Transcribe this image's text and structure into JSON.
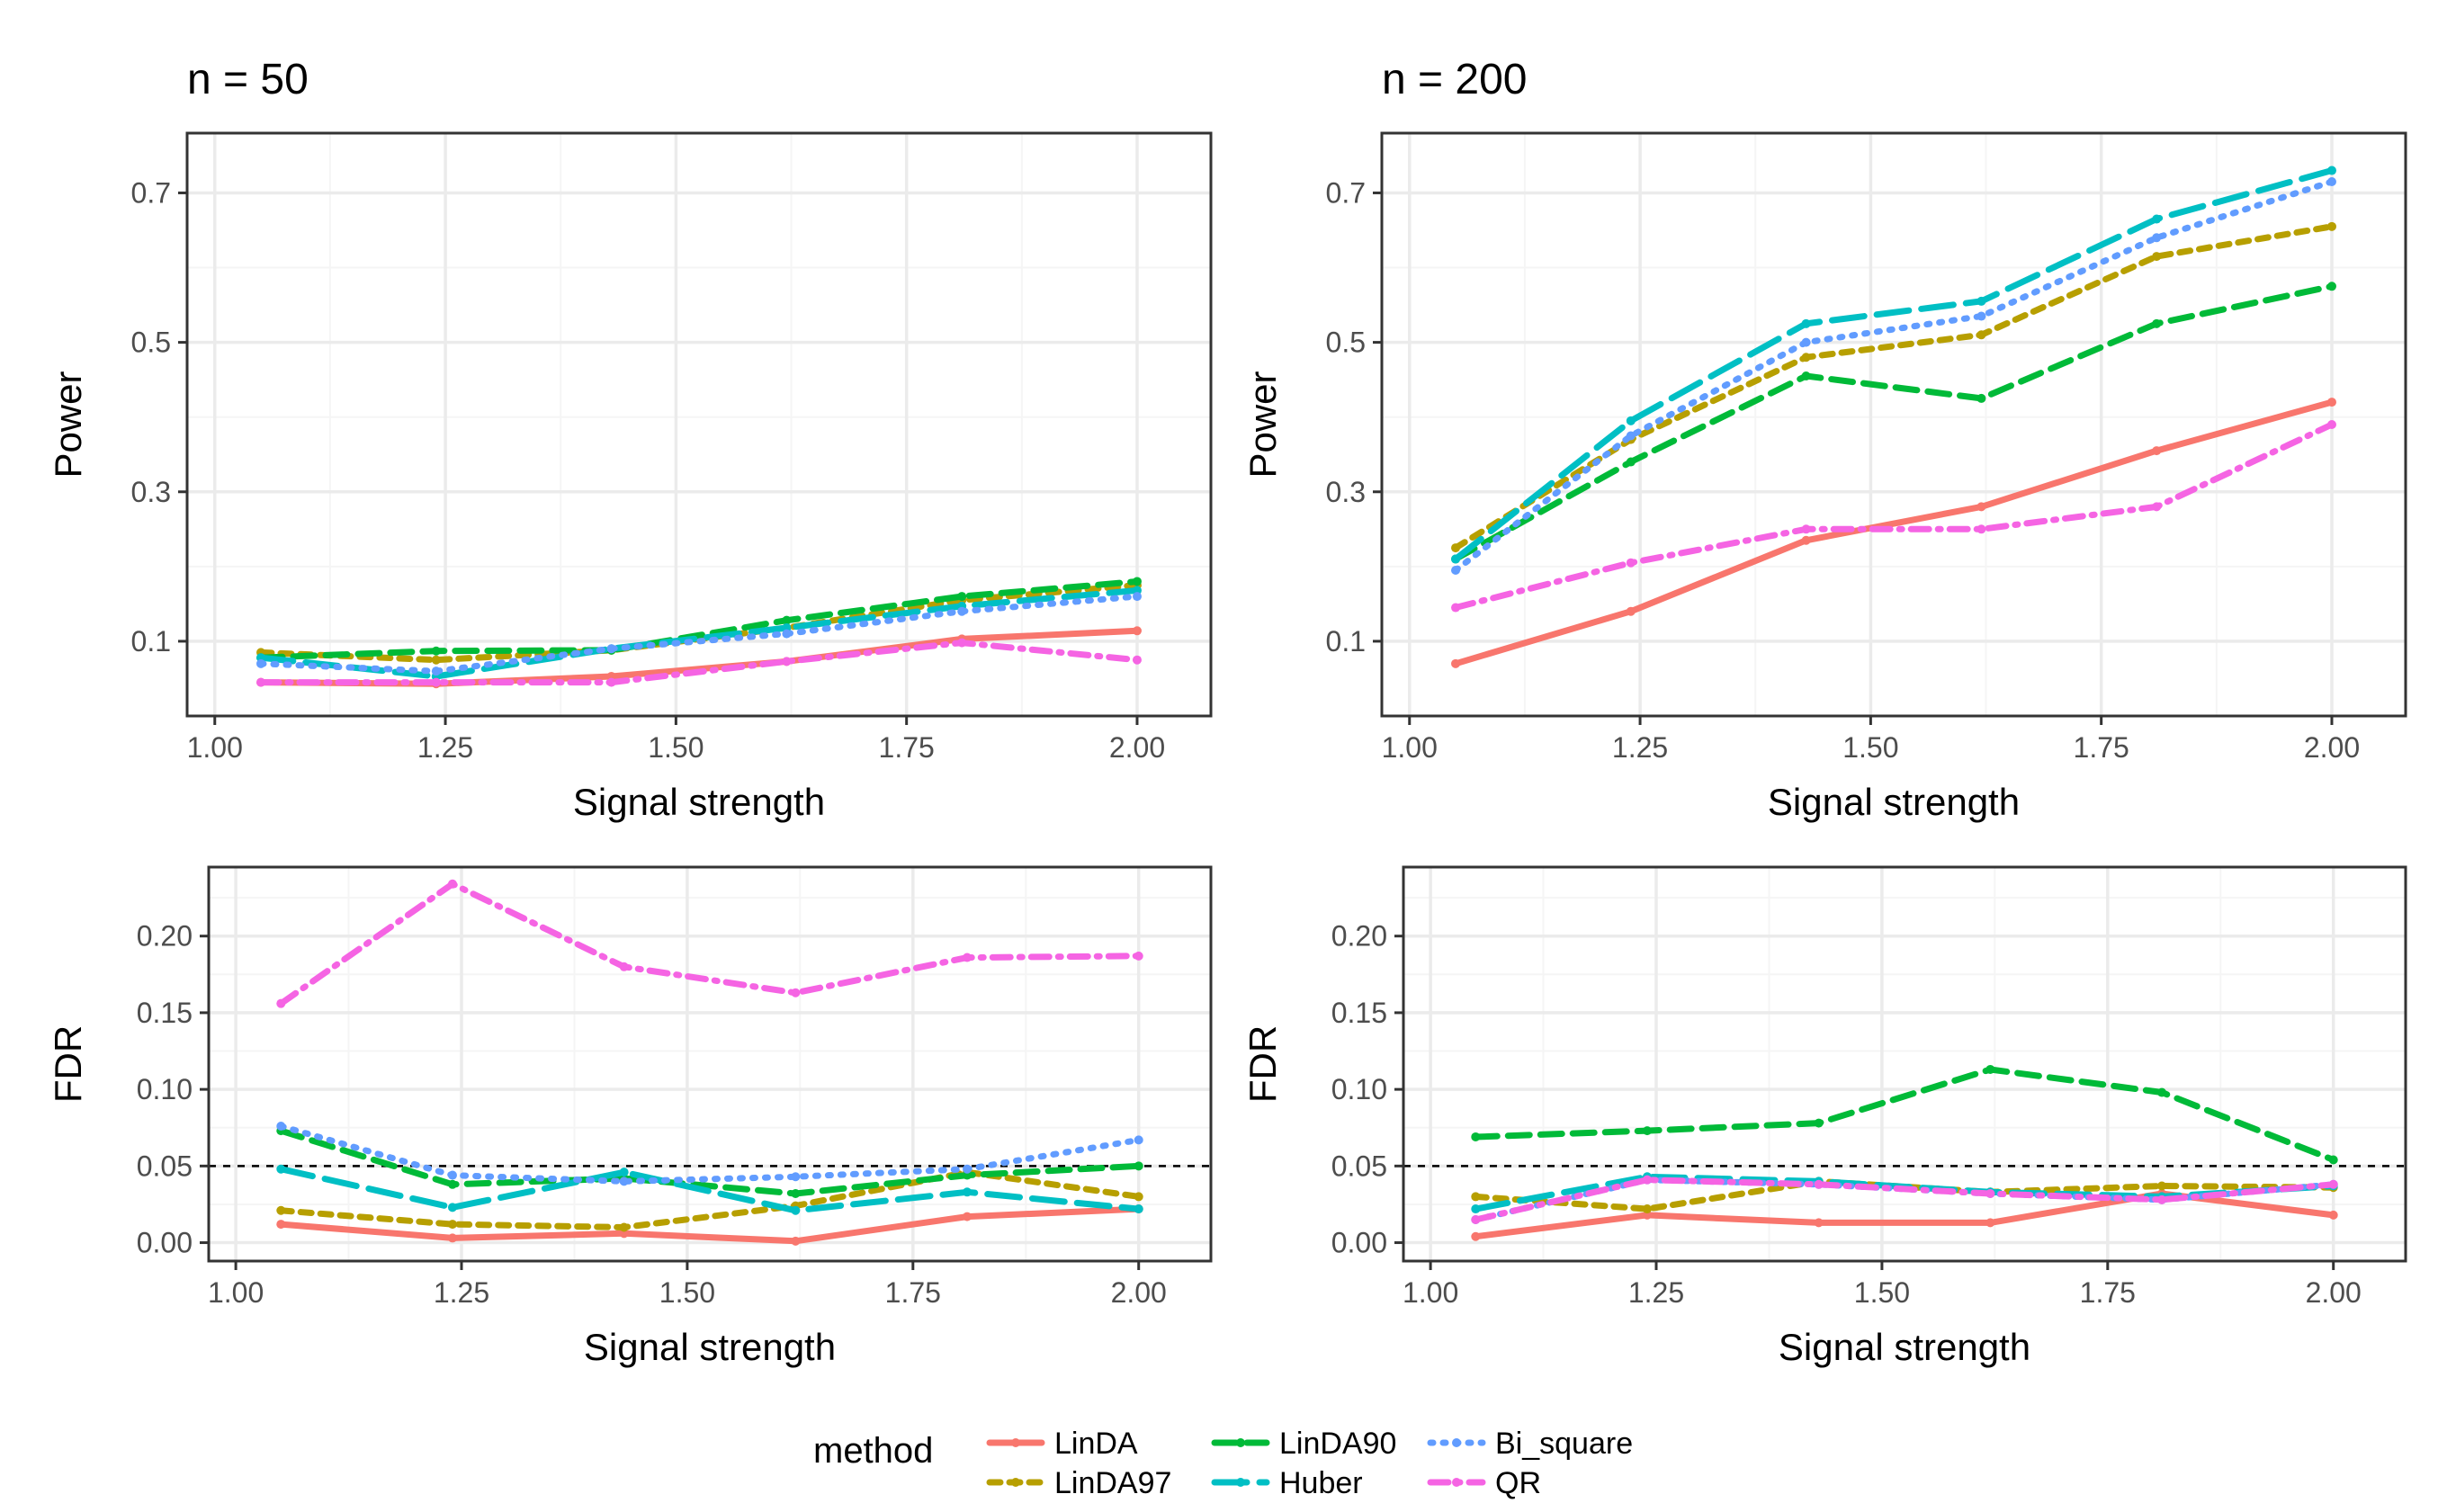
{
  "figure": {
    "legend": {
      "title": "method",
      "position": "bottom",
      "entries": [
        "LinDA",
        "LinDA97",
        "LinDA90",
        "Huber",
        "Bi_square",
        "QR"
      ]
    }
  },
  "chart_data": [
    {
      "type": "line",
      "panel_title": "n = 50",
      "xlabel": "Signal strength",
      "ylabel": "Power",
      "xlim": [
        0.97,
        2.08
      ],
      "ylim": [
        0.0,
        0.78
      ],
      "x_ticks": [
        1.0,
        1.25,
        1.5,
        1.75,
        2.0
      ],
      "x_tick_labels": [
        "1.00",
        "1.25",
        "1.50",
        "1.75",
        "2.00"
      ],
      "y_ticks": [
        0.1,
        0.3,
        0.5,
        0.7
      ],
      "y_tick_labels": [
        "0.1",
        "0.3",
        "0.5",
        "0.7"
      ],
      "hline": null,
      "x": [
        1.05,
        1.24,
        1.43,
        1.62,
        1.81,
        2.0
      ],
      "series": [
        {
          "name": "LinDA",
          "values": [
            0.045,
            0.043,
            0.053,
            0.073,
            0.103,
            0.114
          ]
        },
        {
          "name": "LinDA97",
          "values": [
            0.085,
            0.075,
            0.088,
            0.118,
            0.155,
            0.175
          ]
        },
        {
          "name": "LinDA90",
          "values": [
            0.078,
            0.087,
            0.088,
            0.128,
            0.16,
            0.18
          ]
        },
        {
          "name": "Huber",
          "values": [
            0.078,
            0.053,
            0.09,
            0.118,
            0.147,
            0.168
          ]
        },
        {
          "name": "Bi_square",
          "values": [
            0.07,
            0.06,
            0.09,
            0.11,
            0.14,
            0.16
          ]
        },
        {
          "name": "QR",
          "values": [
            0.045,
            0.045,
            0.045,
            0.073,
            0.098,
            0.075
          ]
        }
      ]
    },
    {
      "type": "line",
      "panel_title": "n = 200",
      "xlabel": "Signal strength",
      "ylabel": "Power",
      "xlim": [
        0.97,
        2.08
      ],
      "ylim": [
        0.0,
        0.78
      ],
      "x_ticks": [
        1.0,
        1.25,
        1.5,
        1.75,
        2.0
      ],
      "x_tick_labels": [
        "1.00",
        "1.25",
        "1.50",
        "1.75",
        "2.00"
      ],
      "y_ticks": [
        0.1,
        0.3,
        0.5,
        0.7
      ],
      "y_tick_labels": [
        "0.1",
        "0.3",
        "0.5",
        "0.7"
      ],
      "hline": null,
      "x": [
        1.05,
        1.24,
        1.43,
        1.62,
        1.81,
        2.0
      ],
      "series": [
        {
          "name": "LinDA",
          "values": [
            0.07,
            0.14,
            0.235,
            0.28,
            0.355,
            0.42
          ]
        },
        {
          "name": "LinDA97",
          "values": [
            0.225,
            0.37,
            0.48,
            0.51,
            0.615,
            0.655
          ]
        },
        {
          "name": "LinDA90",
          "values": [
            0.21,
            0.34,
            0.455,
            0.425,
            0.525,
            0.575
          ]
        },
        {
          "name": "Huber",
          "values": [
            0.21,
            0.395,
            0.525,
            0.555,
            0.665,
            0.73
          ]
        },
        {
          "name": "Bi_square",
          "values": [
            0.195,
            0.375,
            0.5,
            0.535,
            0.64,
            0.715
          ]
        },
        {
          "name": "QR",
          "values": [
            0.145,
            0.205,
            0.25,
            0.25,
            0.28,
            0.39
          ]
        }
      ]
    },
    {
      "type": "line",
      "panel_title": "",
      "xlabel": "Signal strength",
      "ylabel": "FDR",
      "xlim": [
        0.97,
        2.08
      ],
      "ylim": [
        -0.012,
        0.245
      ],
      "x_ticks": [
        1.0,
        1.25,
        1.5,
        1.75,
        2.0
      ],
      "x_tick_labels": [
        "1.00",
        "1.25",
        "1.50",
        "1.75",
        "2.00"
      ],
      "y_ticks": [
        0.0,
        0.05,
        0.1,
        0.15,
        0.2
      ],
      "y_tick_labels": [
        "0.00",
        "0.05",
        "0.10",
        "0.15",
        "0.20"
      ],
      "hline": 0.05,
      "x": [
        1.05,
        1.24,
        1.43,
        1.62,
        1.81,
        2.0
      ],
      "series": [
        {
          "name": "LinDA",
          "values": [
            0.012,
            0.003,
            0.006,
            0.001,
            0.017,
            0.022
          ]
        },
        {
          "name": "LinDA97",
          "values": [
            0.021,
            0.012,
            0.01,
            0.024,
            0.046,
            0.03
          ]
        },
        {
          "name": "LinDA90",
          "values": [
            0.073,
            0.038,
            0.042,
            0.032,
            0.044,
            0.05
          ]
        },
        {
          "name": "Huber",
          "values": [
            0.048,
            0.023,
            0.046,
            0.021,
            0.033,
            0.022
          ]
        },
        {
          "name": "Bi_square",
          "values": [
            0.076,
            0.044,
            0.04,
            0.043,
            0.048,
            0.067
          ]
        },
        {
          "name": "QR",
          "values": [
            0.156,
            0.234,
            0.18,
            0.163,
            0.186,
            0.187
          ]
        }
      ]
    },
    {
      "type": "line",
      "panel_title": "",
      "xlabel": "Signal strength",
      "ylabel": "FDR",
      "xlim": [
        0.97,
        2.08
      ],
      "ylim": [
        -0.012,
        0.245
      ],
      "x_ticks": [
        1.0,
        1.25,
        1.5,
        1.75,
        2.0
      ],
      "x_tick_labels": [
        "1.00",
        "1.25",
        "1.50",
        "1.75",
        "2.00"
      ],
      "y_ticks": [
        0.0,
        0.05,
        0.1,
        0.15,
        0.2
      ],
      "y_tick_labels": [
        "0.00",
        "0.05",
        "0.10",
        "0.15",
        "0.20"
      ],
      "hline": 0.05,
      "x": [
        1.05,
        1.24,
        1.43,
        1.62,
        1.81,
        2.0
      ],
      "series": [
        {
          "name": "LinDA",
          "values": [
            0.004,
            0.018,
            0.013,
            0.013,
            0.032,
            0.018
          ]
        },
        {
          "name": "LinDA97",
          "values": [
            0.03,
            0.022,
            0.04,
            0.033,
            0.037,
            0.036
          ]
        },
        {
          "name": "LinDA90",
          "values": [
            0.069,
            0.073,
            0.078,
            0.113,
            0.098,
            0.054
          ]
        },
        {
          "name": "Huber",
          "values": [
            0.022,
            0.043,
            0.04,
            0.033,
            0.03,
            0.037
          ]
        },
        {
          "name": "Bi_square",
          "values": [
            0.015,
            0.041,
            0.038,
            0.032,
            0.028,
            0.038
          ]
        },
        {
          "name": "QR",
          "values": [
            0.015,
            0.041,
            0.038,
            0.032,
            0.028,
            0.038
          ]
        }
      ]
    }
  ],
  "styles": {
    "series_colors": {
      "LinDA": "#F8766D",
      "LinDA97": "#B79F00",
      "LinDA90": "#00BA38",
      "Huber": "#00BFC4",
      "Bi_square": "#619CFF",
      "QR": "#F564E3"
    },
    "panel_border": "#333333",
    "grid_major": "#EBEBEB",
    "grid_minor": "#F5F5F5",
    "reference_line": "#000000"
  }
}
